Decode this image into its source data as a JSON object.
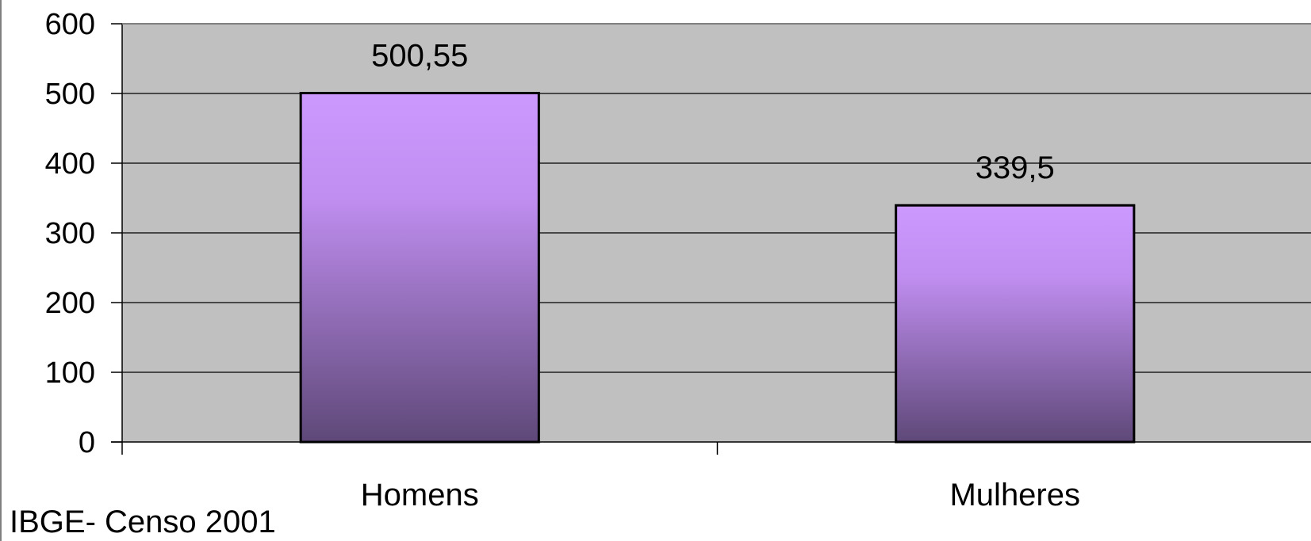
{
  "chart_data": {
    "type": "bar",
    "categories": [
      "Homens",
      "Mulheres"
    ],
    "values": [
      500.55,
      339.5
    ],
    "data_labels": [
      "500,55",
      "339,5"
    ],
    "ylim": [
      0,
      600
    ],
    "yticks": [
      0,
      100,
      200,
      300,
      400,
      500,
      600
    ],
    "grid": true,
    "legend": "none",
    "colors": {
      "plot_background": "#c0c0c0",
      "bar_top": "#cc99ff",
      "bar_bottom": "#5e4878",
      "bar_border": "#000000",
      "gridline": "#000000"
    }
  },
  "source_note": "IBGE- Censo 2001"
}
